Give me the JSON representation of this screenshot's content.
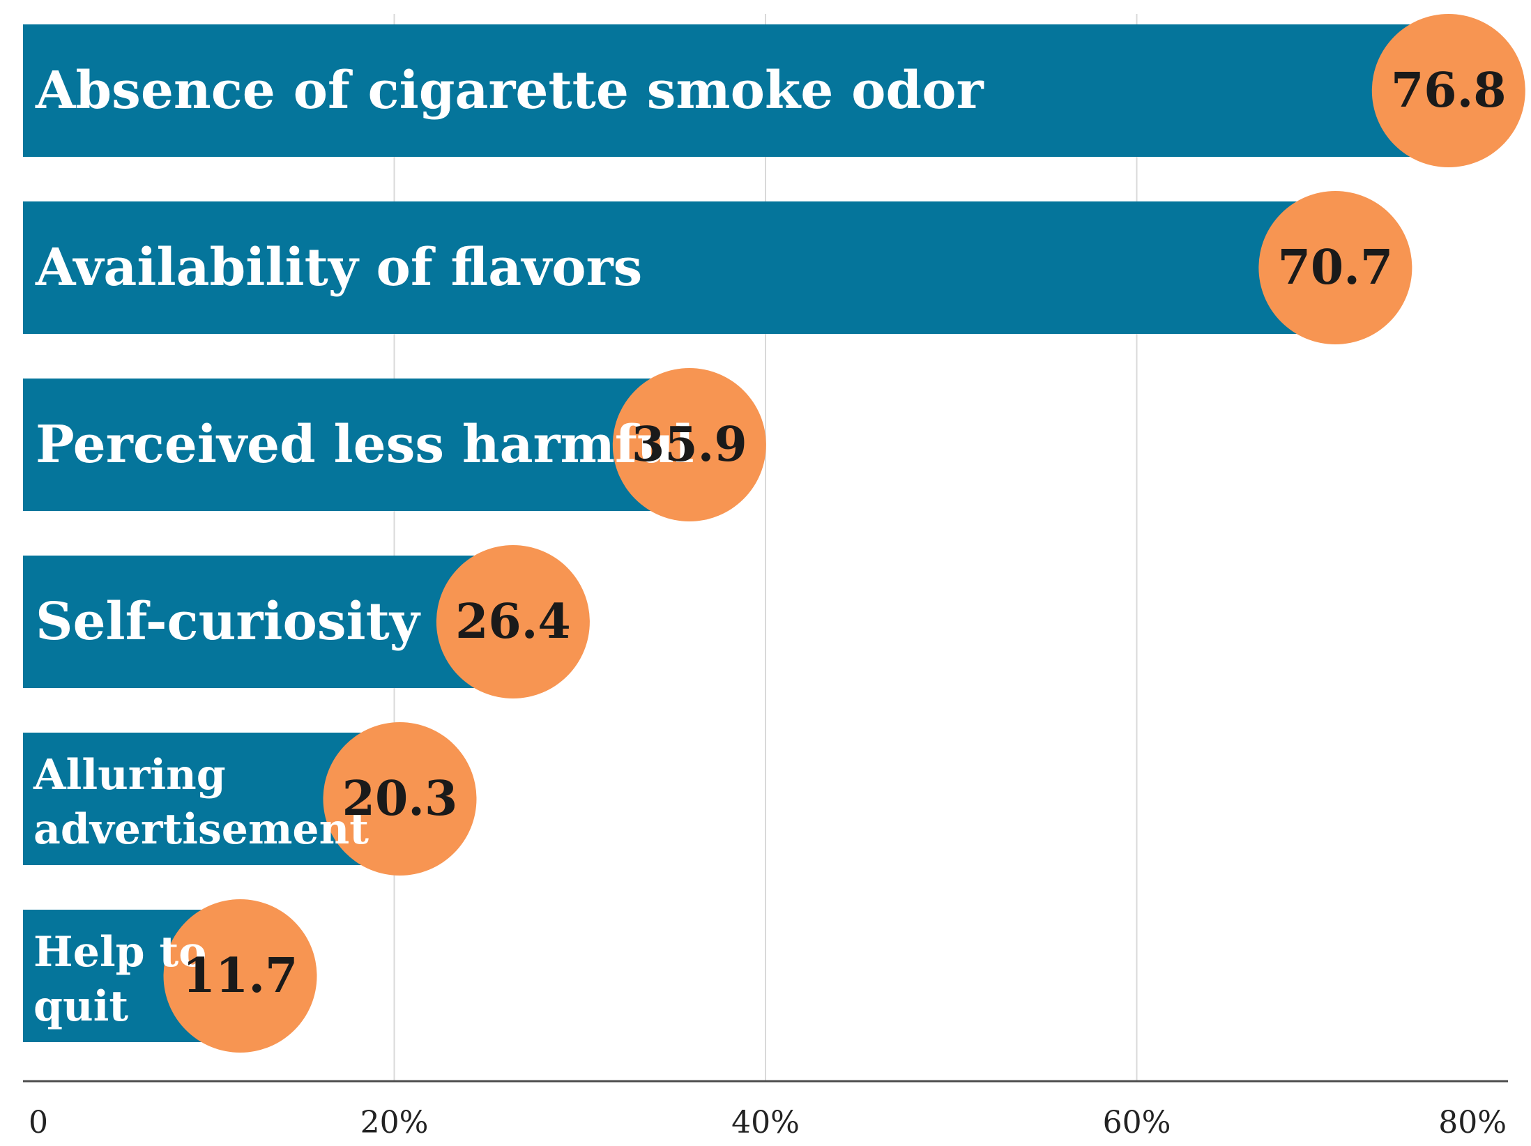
{
  "chart_data": {
    "type": "bar",
    "orientation": "horizontal",
    "title": "",
    "xlabel": "",
    "ylabel": "",
    "xlim": [
      0,
      80
    ],
    "grid": true,
    "categories": [
      [
        "Absence of cigarette smoke odor"
      ],
      [
        "Availability of flavors"
      ],
      [
        "Perceived less harmful"
      ],
      [
        "Self-curiosity"
      ],
      [
        "Alluring",
        "advertisement"
      ],
      [
        "Help to",
        "quit"
      ]
    ],
    "values": [
      76.8,
      70.7,
      35.9,
      26.4,
      20.3,
      11.7
    ],
    "value_labels": [
      "76.8",
      "70.7",
      "35.9",
      "26.4",
      "20.3",
      "11.7"
    ],
    "ticks": [
      0,
      20,
      40,
      60,
      80
    ],
    "tick_labels": [
      "0",
      "20%",
      "40%",
      "60%",
      "80%"
    ],
    "colors": {
      "bar": "#05759b",
      "marker": "#f79552",
      "grid": "#d9d9d9",
      "axis": "#4d4d4d"
    }
  }
}
